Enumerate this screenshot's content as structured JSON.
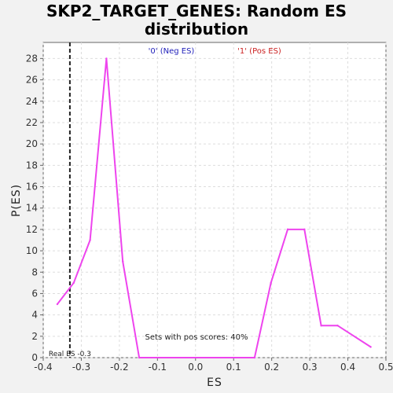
{
  "chart_data": {
    "type": "line",
    "title_line1": "SKP2_TARGET_GENES: Random ES",
    "title_line2": "distribution",
    "xlabel": "ES",
    "ylabel": "P(ES)",
    "xlim": [
      -0.4,
      0.5
    ],
    "ylim": [
      0,
      29.5
    ],
    "x_ticks": [
      -0.4,
      -0.3,
      -0.2,
      -0.1,
      0.0,
      0.1,
      0.2,
      0.3,
      0.4,
      0.5
    ],
    "x_tick_labels": [
      "-0.4",
      "-0.3",
      "-0.2",
      "-0.1",
      "0.0",
      "0.1",
      "0.2",
      "0.3",
      "0.4",
      "0.5"
    ],
    "y_ticks": [
      0,
      2,
      4,
      6,
      8,
      10,
      12,
      14,
      16,
      18,
      20,
      22,
      24,
      26,
      28
    ],
    "y_tick_labels": [
      "0",
      "2",
      "4",
      "6",
      "8",
      "10",
      "12",
      "14",
      "16",
      "18",
      "20",
      "22",
      "24",
      "26",
      "28"
    ],
    "grid": true,
    "series": [
      {
        "color": "#ee44ee",
        "x": [
          -0.363,
          -0.32,
          -0.277,
          -0.234,
          -0.191,
          -0.148,
          0.155,
          0.198,
          0.242,
          0.286,
          0.33,
          0.373,
          0.46
        ],
        "y": [
          5,
          7,
          11,
          28,
          9,
          0,
          0,
          7,
          12,
          12,
          3,
          3,
          1
        ]
      }
    ],
    "real_es": {
      "x": -0.33,
      "label": "Real ES -0.3"
    },
    "legend": [
      {
        "label": "'0' (Neg ES)",
        "color": "#2222bb"
      },
      {
        "label": "'1' (Pos ES)",
        "color": "#cc2222"
      }
    ],
    "annotation": "Sets with pos scores: 40%",
    "colors": {
      "plot_bg": "#ffffff",
      "page_bg": "#f2f2f2",
      "grid": "#dddddd",
      "line": "#ee44ee"
    }
  }
}
